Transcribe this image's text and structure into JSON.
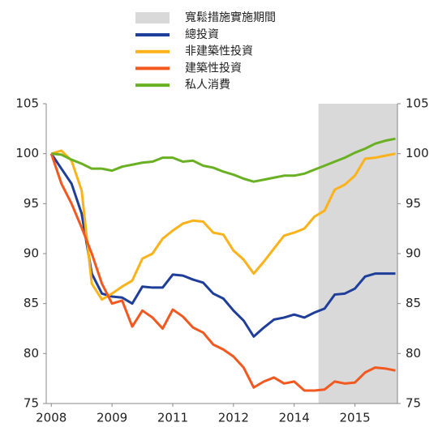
{
  "chart_data": {
    "type": "line",
    "shaded_region": {
      "name": "寬鬆措施實施期間",
      "x": [
        26.4,
        34.2
      ],
      "color": "#d9d9d9"
    },
    "x": [
      0,
      1,
      2,
      3,
      4,
      5,
      6,
      7,
      8,
      9,
      10,
      11,
      12,
      13,
      14,
      15,
      16,
      17,
      18,
      19,
      20,
      21,
      22,
      23,
      24,
      25,
      26,
      27,
      28,
      29,
      30,
      31,
      32,
      33,
      34
    ],
    "xlim": [
      -0.5,
      34.2
    ],
    "xticks": [
      {
        "value": 0,
        "label": "2008"
      },
      {
        "value": 6,
        "label": "2009"
      },
      {
        "value": 12,
        "label": "2011"
      },
      {
        "value": 18,
        "label": "2012"
      },
      {
        "value": 24,
        "label": "2014"
      },
      {
        "value": 30,
        "label": "2015"
      }
    ],
    "ylim": [
      75,
      105
    ],
    "yticks": [
      75,
      80,
      85,
      90,
      95,
      100,
      105
    ],
    "y2lim": [
      75,
      105
    ],
    "y2ticks": [
      75,
      80,
      85,
      90,
      95,
      100,
      105
    ],
    "series": [
      {
        "name": "總投資",
        "color": "#1f3e9a",
        "values": [
          100,
          98.5,
          97,
          94,
          88,
          86,
          85.7,
          85.6,
          85,
          86.7,
          86.6,
          86.6,
          87.9,
          87.8,
          87.4,
          87.1,
          86,
          85.5,
          84.3,
          83.3,
          81.7,
          82.6,
          83.4,
          83.6,
          83.9,
          83.6,
          84.1,
          84.5,
          85.9,
          86,
          86.5,
          87.7,
          88,
          88,
          88
        ]
      },
      {
        "name": "非建築性投資",
        "color": "#fbb21b",
        "values": [
          100,
          100.3,
          99.3,
          96.3,
          87,
          85.4,
          86,
          86.7,
          87.3,
          89.5,
          90,
          91.5,
          92.3,
          93,
          93.3,
          93.2,
          92.1,
          91.9,
          90.3,
          89.4,
          88,
          89.2,
          90.5,
          91.8,
          92.1,
          92.5,
          93.7,
          94.3,
          96.4,
          96.9,
          97.8,
          99.5,
          99.6,
          99.8,
          100
        ]
      },
      {
        "name": "建築性投資",
        "color": "#f2581f",
        "values": [
          100,
          97,
          95,
          92.6,
          90,
          87,
          85,
          85.3,
          82.7,
          84.3,
          83.6,
          82.5,
          84.4,
          83.7,
          82.6,
          82.1,
          80.9,
          80.4,
          79.7,
          78.6,
          76.6,
          77.2,
          77.6,
          77,
          77.2,
          76.3,
          76.3,
          76.4,
          77.2,
          77,
          77.1,
          78.1,
          78.6,
          78.5,
          78.3
        ]
      },
      {
        "name": "私人消費",
        "color": "#6ab023",
        "values": [
          100,
          99.9,
          99.4,
          99,
          98.5,
          98.5,
          98.3,
          98.7,
          98.9,
          99.1,
          99.2,
          99.6,
          99.6,
          99.2,
          99.3,
          98.8,
          98.6,
          98.2,
          97.9,
          97.5,
          97.2,
          97.4,
          97.6,
          97.8,
          97.8,
          98,
          98.4,
          98.8,
          99.2,
          99.6,
          100.1,
          100.5,
          101,
          101.3,
          101.5
        ]
      }
    ]
  }
}
